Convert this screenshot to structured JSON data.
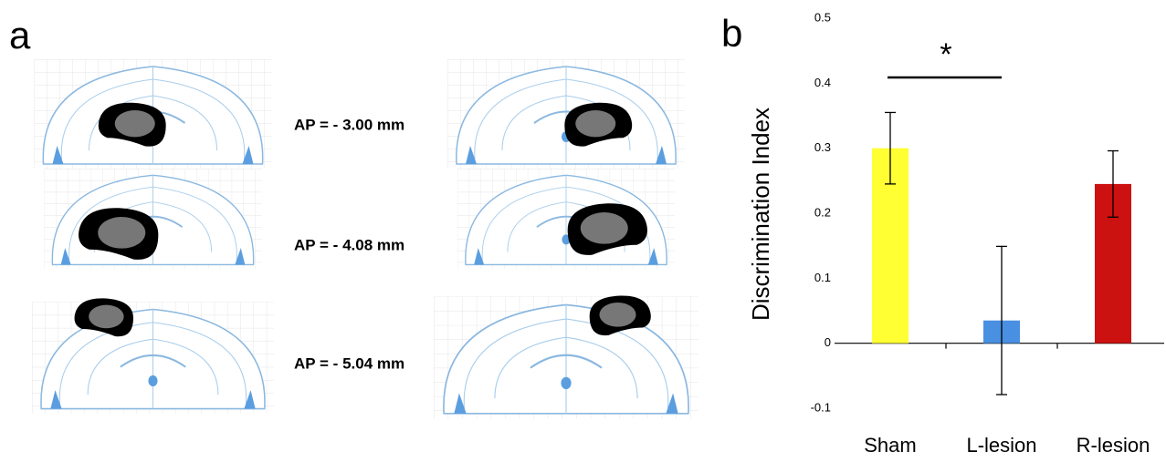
{
  "panel_a": {
    "label": "a",
    "sections": [
      "AP = - 3.00 mm",
      "AP = - 4.08 mm",
      "AP = - 5.04 mm"
    ]
  },
  "panel_b_label": "b",
  "chart_data": {
    "type": "bar",
    "ylabel": "Discrimination Index",
    "categories": [
      "Sham",
      "L-lesion",
      "R-lesion"
    ],
    "values": [
      0.3,
      0.035,
      0.245
    ],
    "errors": [
      0.055,
      0.114,
      0.051
    ],
    "colors": [
      "#ffff33",
      "#4a90e2",
      "#cc1111"
    ],
    "ylim": [
      -0.1,
      0.5
    ],
    "yticks": [
      -0.1,
      0,
      0.1,
      0.2,
      0.3,
      0.4,
      0.5
    ],
    "annotation": "*"
  }
}
